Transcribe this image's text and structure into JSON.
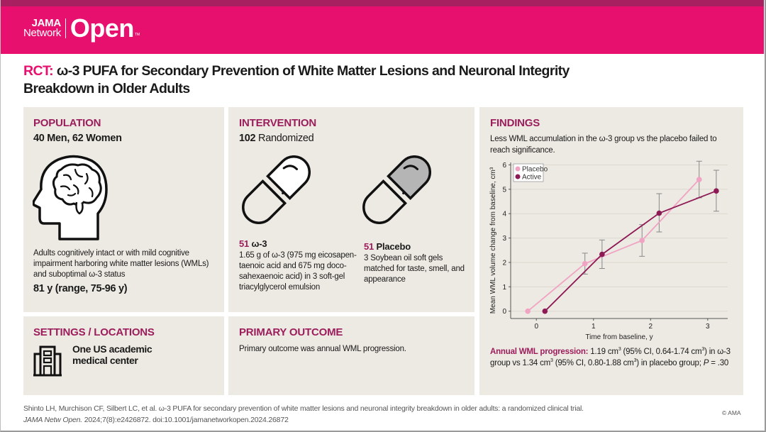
{
  "header": {
    "logo_top": "JAMA",
    "logo_bottom": "Network",
    "logo_main": "Open",
    "logo_tm": "TM",
    "brand_color": "#e8106f",
    "strip_color": "#a8205f"
  },
  "title": {
    "prefix": "RCT:",
    "text": " ω-3 PUFA for Secondary Prevention of White Matter Lesions and Neuronal Integrity Breakdown in Older Adults"
  },
  "population": {
    "heading": "POPULATION",
    "subheading": "40 Men, 62 Women",
    "icon": "head-brain-icon",
    "description": "Adults cognitively intact or with mild cognitive impairment harboring white matter lesions (WMLs) and suboptimal ω-3 status",
    "age": "81 y (range, 75-96 y)"
  },
  "intervention": {
    "heading": "INTERVENTION",
    "randomized_n": "102",
    "randomized_label": " Randomized",
    "arms": [
      {
        "n": "51",
        "name": " ω-3",
        "icon": "capsule-white-icon",
        "description": "1.65 g of ω-3 (975 mg eicosapen-taenoic acid and 675 mg doco-sahexaenoic acid) in 3 soft-gel triacylglycerol emulsion"
      },
      {
        "n": "51",
        "name": " Placebo",
        "icon": "capsule-gray-icon",
        "description": "3 Soybean oil soft gels matched for taste, smell, and appearance"
      }
    ]
  },
  "settings": {
    "heading": "SETTINGS / LOCATIONS",
    "icon": "building-icon",
    "text_line1": "One US academic",
    "text_line2": "medical center"
  },
  "outcome": {
    "heading": "PRIMARY OUTCOME",
    "text": "Primary outcome was annual WML progression."
  },
  "findings": {
    "heading": "FINDINGS",
    "description": "Less WML accumulation in the ω-3 group vs the placebo failed to reach significance.",
    "annual_label": "Annual WML progression:",
    "annual_part1": " 1.19 cm",
    "annual_part2": " (95% CI, 0.64-1.74 cm",
    "annual_part3": ") in ω-3 group vs 1.34 cm",
    "annual_part4": " (95% CI, 0.80-1.88 cm",
    "annual_part5": ") in placebo group; ",
    "annual_p_label": "P",
    "annual_p_value": " = .30",
    "sup3": "3"
  },
  "chart_data": {
    "type": "line",
    "title": "",
    "xlabel": "Time from baseline, y",
    "ylabel": "Mean WML volume change from baseline, cm³",
    "xlim": [
      -0.45,
      3.35
    ],
    "ylim": [
      -0.3,
      6.1
    ],
    "xticks": [
      0,
      1,
      2,
      3
    ],
    "yticks": [
      0,
      1,
      2,
      3,
      4,
      5,
      6
    ],
    "grid": "horizontal",
    "legend_position": "top-left",
    "series": [
      {
        "name": "Placebo",
        "color": "#f0a3c3",
        "x": [
          -0.15,
          0.85,
          1.85,
          2.85
        ],
        "y": [
          0,
          1.95,
          2.9,
          5.4
        ],
        "ci_low": [
          null,
          1.52,
          2.25,
          4.65
        ],
        "ci_high": [
          null,
          2.38,
          3.55,
          6.15
        ]
      },
      {
        "name": "Active",
        "color": "#8e1a55",
        "x": [
          0.15,
          1.15,
          2.15,
          3.15
        ],
        "y": [
          0,
          2.33,
          4.02,
          4.93
        ],
        "ci_low": [
          null,
          1.75,
          3.25,
          4.1
        ],
        "ci_high": [
          null,
          2.92,
          4.82,
          5.78
        ]
      }
    ]
  },
  "citation": {
    "line1": "Shinto LH, Murchison CF, Silbert LC, et al. ω-3 PUFA for secondary prevention of white matter lesions and neuronal integrity breakdown in older adults: a randomized clinical trial.",
    "journal": "JAMA Netw Open.",
    "rest": " 2024;7(8):e2426872. doi:10.1001/jamanetworkopen.2024.26872",
    "copyright": "© AMA"
  }
}
